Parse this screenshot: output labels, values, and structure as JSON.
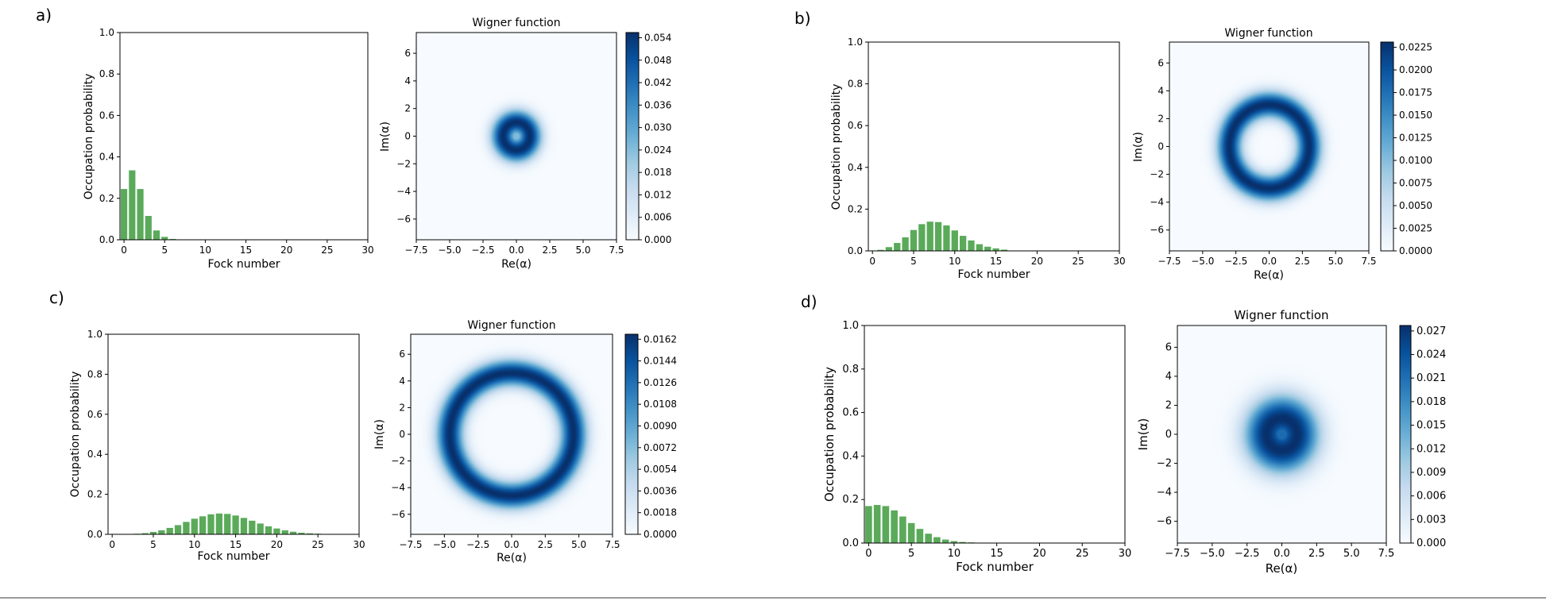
{
  "panels": [
    {
      "label": "a)",
      "chart_data": [
        {
          "type": "bar",
          "xlabel": "Fock number",
          "ylabel": "Occupation probability",
          "xlim": [
            -0.5,
            30
          ],
          "ylim": [
            0,
            1.0
          ],
          "xticks": [
            "0",
            "5",
            "10",
            "15",
            "20",
            "25",
            "30"
          ],
          "yticks": [
            "0.0",
            "0.2",
            "0.4",
            "0.6",
            "0.8",
            "1.0"
          ],
          "bar_color": "#5aaa5a",
          "x": [
            0,
            1,
            2,
            3,
            4,
            5,
            6
          ],
          "values": [
            0.245,
            0.335,
            0.245,
            0.115,
            0.045,
            0.014,
            0.004
          ]
        },
        {
          "type": "heatmap",
          "title": "Wigner function",
          "xlabel": "Re(α)",
          "ylabel": "Im(α)",
          "xlim": [
            -7.5,
            7.5
          ],
          "ylim": [
            -7.5,
            7.5
          ],
          "xticks": [
            "−7.5",
            "−5.0",
            "−2.5",
            "0.0",
            "2.5",
            "5.0",
            "7.5"
          ],
          "yticks": [
            "−6",
            "−4",
            "−2",
            "0",
            "2",
            "4",
            "6"
          ],
          "colormap": "Blues",
          "ring_radius": 1.0,
          "ring_width": 0.9,
          "center_value": 0.45,
          "colorbar_ticks": [
            "0.000",
            "0.006",
            "0.012",
            "0.018",
            "0.024",
            "0.030",
            "0.036",
            "0.042",
            "0.048",
            "0.054"
          ]
        }
      ]
    },
    {
      "label": "b)",
      "chart_data": [
        {
          "type": "bar",
          "xlabel": "Fock number",
          "ylabel": "Occupation probability",
          "xlim": [
            -0.5,
            30
          ],
          "ylim": [
            0,
            1.0
          ],
          "xticks": [
            "0",
            "5",
            "10",
            "15",
            "20",
            "25",
            "30"
          ],
          "yticks": [
            "0.0",
            "0.2",
            "0.4",
            "0.6",
            "0.8",
            "1.0"
          ],
          "bar_color": "#5aaa5a",
          "x": [
            1,
            2,
            3,
            4,
            5,
            6,
            7,
            8,
            9,
            10,
            11,
            12,
            13,
            14,
            15,
            16
          ],
          "values": [
            0.005,
            0.018,
            0.038,
            0.065,
            0.1,
            0.128,
            0.14,
            0.138,
            0.122,
            0.098,
            0.072,
            0.05,
            0.032,
            0.02,
            0.012,
            0.006
          ]
        },
        {
          "type": "heatmap",
          "title": "Wigner function",
          "xlabel": "Re(α)",
          "ylabel": "Im(α)",
          "xlim": [
            -7.5,
            7.5
          ],
          "ylim": [
            -7.5,
            7.5
          ],
          "xticks": [
            "−7.5",
            "−5.0",
            "−2.5",
            "0.0",
            "2.5",
            "5.0",
            "7.5"
          ],
          "yticks": [
            "−6",
            "−4",
            "−2",
            "0",
            "2",
            "4",
            "6"
          ],
          "colormap": "Blues",
          "ring_radius": 3.0,
          "ring_width": 0.95,
          "center_value": 0.0,
          "colorbar_ticks": [
            "0.0000",
            "0.0025",
            "0.0050",
            "0.0075",
            "0.0100",
            "0.0125",
            "0.0150",
            "0.0175",
            "0.0200",
            "0.0225"
          ]
        }
      ]
    },
    {
      "label": "c)",
      "chart_data": [
        {
          "type": "bar",
          "xlabel": "Fock number",
          "ylabel": "Occupation probability",
          "xlim": [
            -0.5,
            30
          ],
          "ylim": [
            0,
            1.0
          ],
          "xticks": [
            "0",
            "5",
            "10",
            "15",
            "20",
            "25",
            "30"
          ],
          "yticks": [
            "0.0",
            "0.2",
            "0.4",
            "0.6",
            "0.8",
            "1.0"
          ],
          "bar_color": "#5aaa5a",
          "x": [
            3,
            4,
            5,
            6,
            7,
            8,
            9,
            10,
            11,
            12,
            13,
            14,
            15,
            16,
            17,
            18,
            19,
            20,
            21,
            22,
            23,
            24,
            25,
            26
          ],
          "values": [
            0.003,
            0.006,
            0.012,
            0.02,
            0.032,
            0.046,
            0.062,
            0.078,
            0.09,
            0.1,
            0.104,
            0.102,
            0.094,
            0.082,
            0.068,
            0.054,
            0.04,
            0.029,
            0.02,
            0.013,
            0.008,
            0.005,
            0.003,
            0.002
          ]
        },
        {
          "type": "heatmap",
          "title": "Wigner function",
          "xlabel": "Re(α)",
          "ylabel": "Im(α)",
          "xlim": [
            -7.5,
            7.5
          ],
          "ylim": [
            -7.5,
            7.5
          ],
          "xticks": [
            "−7.5",
            "−5.0",
            "−2.5",
            "0.0",
            "2.5",
            "5.0",
            "7.5"
          ],
          "yticks": [
            "−6",
            "−4",
            "−2",
            "0",
            "2",
            "4",
            "6"
          ],
          "colormap": "Blues",
          "ring_radius": 4.6,
          "ring_width": 1.0,
          "center_value": 0.0,
          "colorbar_ticks": [
            "0.0000",
            "0.0018",
            "0.0036",
            "0.0054",
            "0.0072",
            "0.0090",
            "0.0108",
            "0.0126",
            "0.0144",
            "0.0162"
          ]
        }
      ]
    },
    {
      "label": "d)",
      "chart_data": [
        {
          "type": "bar",
          "xlabel": "Fock number",
          "ylabel": "Occupation probability",
          "xlim": [
            -0.5,
            30
          ],
          "ylim": [
            0,
            1.0
          ],
          "xticks": [
            "0",
            "5",
            "10",
            "15",
            "20",
            "25",
            "30"
          ],
          "yticks": [
            "0.0",
            "0.2",
            "0.4",
            "0.6",
            "0.8",
            "1.0"
          ],
          "bar_color": "#5aaa5a",
          "x": [
            0,
            1,
            2,
            3,
            4,
            5,
            6,
            7,
            8,
            9,
            10,
            11,
            12
          ],
          "values": [
            0.17,
            0.175,
            0.17,
            0.15,
            0.122,
            0.092,
            0.065,
            0.043,
            0.027,
            0.016,
            0.009,
            0.005,
            0.003
          ]
        },
        {
          "type": "heatmap",
          "title": "Wigner function",
          "xlabel": "Re(α)",
          "ylabel": "Im(α)",
          "xlim": [
            -7.5,
            7.5
          ],
          "ylim": [
            -7.5,
            7.5
          ],
          "xticks": [
            "−7.5",
            "−5.0",
            "−2.5",
            "0.0",
            "2.5",
            "5.0",
            "7.5"
          ],
          "yticks": [
            "−6",
            "−4",
            "−2",
            "0",
            "2",
            "4",
            "6"
          ],
          "colormap": "Blues",
          "ring_radius": 1.1,
          "ring_width": 1.6,
          "center_value": 0.78,
          "colorbar_ticks": [
            "0.000",
            "0.003",
            "0.006",
            "0.009",
            "0.012",
            "0.015",
            "0.018",
            "0.021",
            "0.024",
            "0.027"
          ]
        }
      ]
    }
  ]
}
